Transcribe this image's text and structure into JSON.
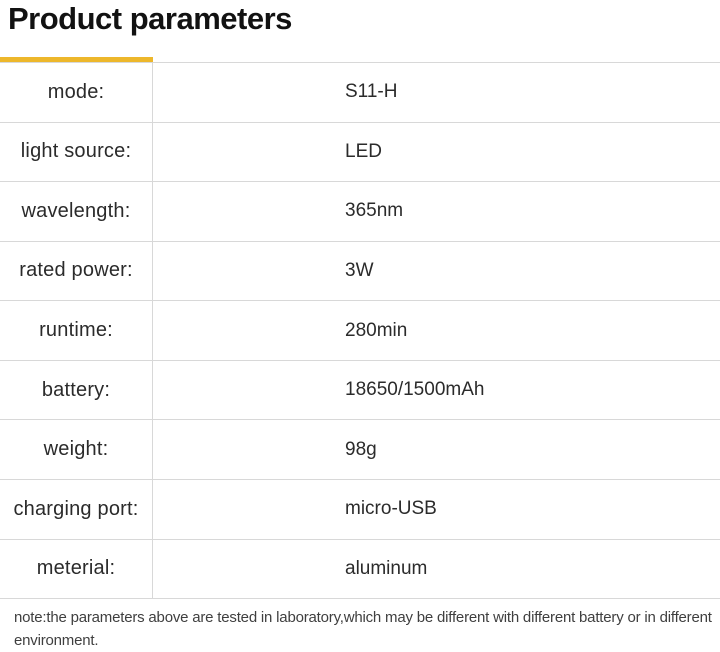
{
  "page": {
    "title": "Product parameters",
    "note": "note:the parameters above are tested in laboratory,which may be different with different battery or in different environment."
  },
  "table": {
    "accent_color": "#edb72b",
    "line_color": "#d8d8d8",
    "rows": [
      {
        "label": "mode:",
        "value": "S11-H"
      },
      {
        "label": "light source:",
        "value": "LED"
      },
      {
        "label": "wavelength:",
        "value": "365nm"
      },
      {
        "label": "rated power:",
        "value": "3W"
      },
      {
        "label": "runtime:",
        "value": "280min"
      },
      {
        "label": "battery:",
        "value": "18650/1500mAh"
      },
      {
        "label": "weight:",
        "value": "98g"
      },
      {
        "label": "charging port:",
        "value": "micro-USB"
      },
      {
        "label": "meterial:",
        "value": "aluminum"
      }
    ]
  }
}
